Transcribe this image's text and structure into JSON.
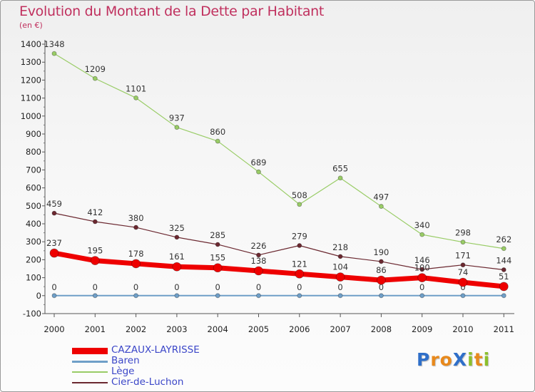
{
  "title": "Evolution du Montant de la Dette par Habitant",
  "subtitle": "(en €)",
  "brand": {
    "text": "ProXiti",
    "letters": [
      {
        "ch": "P",
        "color": "#2f6fc9"
      },
      {
        "ch": "r",
        "color": "#e8891c"
      },
      {
        "ch": "o",
        "color": "#e8891c"
      },
      {
        "ch": "X",
        "color": "#2f6fc9"
      },
      {
        "ch": "i",
        "color": "#8cbf2c"
      },
      {
        "ch": "t",
        "color": "#e8891c"
      },
      {
        "ch": "i",
        "color": "#8cbf2c"
      }
    ]
  },
  "chart_data": {
    "type": "line",
    "x": [
      "2000",
      "2001",
      "2002",
      "2003",
      "2004",
      "2005",
      "2006",
      "2007",
      "2008",
      "2009",
      "2010",
      "2011"
    ],
    "ylim": [
      -100,
      1400
    ],
    "yticks": [
      -100,
      0,
      100,
      200,
      300,
      400,
      500,
      600,
      700,
      800,
      900,
      1000,
      1100,
      1200,
      1300,
      1400
    ],
    "grid": false,
    "legend_position": "bottom-left",
    "series": [
      {
        "name": "Lège",
        "color": "#99cc66",
        "values": [
          1348,
          1209,
          1101,
          937,
          860,
          689,
          508,
          655,
          497,
          340,
          298,
          262
        ]
      },
      {
        "name": "Cier-de-Luchon",
        "color": "#6b2830",
        "values": [
          459,
          412,
          380,
          325,
          285,
          226,
          279,
          218,
          190,
          146,
          171,
          144
        ]
      },
      {
        "name": "Baren",
        "color": "#6f9fc8",
        "values": [
          0,
          0,
          0,
          0,
          0,
          0,
          0,
          0,
          0,
          0,
          0,
          0
        ]
      },
      {
        "name": "CAZAUX-LAYRISSE",
        "color": "#ee0000",
        "values": [
          237,
          195,
          178,
          161,
          155,
          138,
          121,
          104,
          86,
          100,
          74,
          51
        ]
      }
    ],
    "legend_order": [
      "CAZAUX-LAYRISSE",
      "Baren",
      "Lège",
      "Cier-de-Luchon"
    ]
  }
}
